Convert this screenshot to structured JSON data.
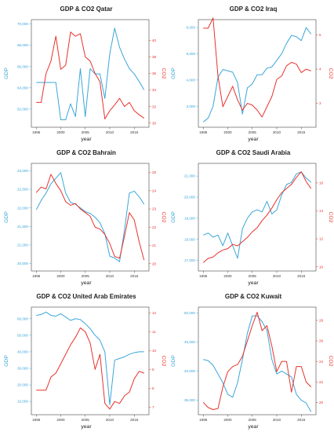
{
  "panels": [
    {
      "title": "GDP & CO2 Qatar",
      "xlabel": "year",
      "ylabel_left": "GDP",
      "ylabel_right": "CO2",
      "xlim": [
        1994,
        2018
      ],
      "ylim_left": [
        60300,
        70400
      ],
      "ylim_right": [
        29.5,
        42.5
      ],
      "xticks": [
        1995,
        2000,
        2005,
        2010,
        2015
      ],
      "yticks_left": [
        62000,
        64000,
        66000,
        68000,
        70000
      ],
      "yticks_left_labels": [
        "62,000",
        "64,000",
        "66,000",
        "68,000",
        "70,000"
      ],
      "yticks_right": [
        30,
        32,
        34,
        36,
        38,
        40
      ],
      "yticks_right_labels": [
        "30",
        "32",
        "34",
        "36",
        "38",
        "40"
      ],
      "series": [
        {
          "axis": "left",
          "color": "#3aa6d9",
          "x": [
            1995,
            1996,
            1997,
            1998,
            1999,
            2000,
            2001,
            2002,
            2003,
            2004,
            2005,
            2006,
            2007,
            2008,
            2009,
            2010,
            2011,
            2012,
            2013,
            2014,
            2015,
            2016,
            2017
          ],
          "y": [
            64500,
            64500,
            64500,
            64500,
            64500,
            61000,
            61000,
            62500,
            61300,
            65800,
            61300,
            65800,
            65300,
            65300,
            63000,
            67200,
            69600,
            67800,
            66700,
            65800,
            65300,
            64600,
            63800
          ]
        },
        {
          "axis": "right",
          "color": "#e8322c",
          "x": [
            1995,
            1996,
            1997,
            1998,
            1999,
            2000,
            2001,
            2002,
            2003,
            2004,
            2005,
            2006,
            2007,
            2008,
            2009,
            2010,
            2011,
            2012,
            2013,
            2014,
            2015,
            2016,
            2017
          ],
          "y": [
            32.5,
            32.5,
            36,
            37.5,
            40.5,
            36.5,
            37,
            41,
            40.5,
            40.8,
            38,
            37.5,
            36,
            35,
            30.5,
            31.5,
            32.2,
            33,
            32,
            32.5,
            31.5,
            31,
            30.6
          ]
        }
      ]
    },
    {
      "title": "GDP & CO2 Iraq",
      "xlabel": "year",
      "ylabel_left": "GDP",
      "ylabel_right": "CO2",
      "xlim": [
        1994,
        2018
      ],
      "ylim_left": [
        2200,
        6300
      ],
      "ylim_right": [
        2.3,
        5.45
      ],
      "xticks": [
        1995,
        2000,
        2005,
        2010,
        2015
      ],
      "yticks_left": [
        3000,
        4000,
        5000,
        6000
      ],
      "yticks_left_labels": [
        "3,000",
        "4,000",
        "5,000",
        "6,000"
      ],
      "yticks_right": [
        3,
        4,
        5
      ],
      "yticks_right_labels": [
        "3",
        "4",
        "5"
      ],
      "series": [
        {
          "axis": "left",
          "color": "#3aa6d9",
          "x": [
            1995,
            1996,
            1997,
            1998,
            1999,
            2000,
            2001,
            2002,
            2003,
            2004,
            2005,
            2006,
            2007,
            2008,
            2009,
            2010,
            2011,
            2012,
            2013,
            2014,
            2015,
            2016,
            2017
          ],
          "y": [
            2400,
            2550,
            3000,
            4100,
            4400,
            4350,
            4300,
            3900,
            2700,
            3700,
            3850,
            4200,
            4200,
            4450,
            4500,
            4750,
            5000,
            5400,
            5700,
            5650,
            5500,
            6000,
            5750
          ]
        },
        {
          "axis": "right",
          "color": "#e8322c",
          "x": [
            1995,
            1996,
            1997,
            1998,
            1999,
            2000,
            2001,
            2002,
            2003,
            2004,
            2005,
            2006,
            2007,
            2008,
            2009,
            2010,
            2011,
            2012,
            2013,
            2014,
            2015,
            2016,
            2017
          ],
          "y": [
            5.2,
            5.2,
            5.5,
            3.8,
            2.9,
            3.2,
            3.5,
            3.1,
            2.8,
            3.0,
            2.95,
            2.8,
            2.6,
            2.9,
            3.2,
            3.7,
            3.8,
            4.1,
            4.2,
            4.15,
            3.9,
            4.0,
            3.95
          ]
        }
      ]
    },
    {
      "title": "GDP & CO2 Bahrain",
      "xlabel": "year",
      "ylabel_left": "GDP",
      "ylabel_right": "CO2",
      "xlim": [
        1994,
        2018
      ],
      "ylim_left": [
        20300,
        23200
      ],
      "ylim_right": [
        19.6,
        25.5
      ],
      "xticks": [
        1995,
        2000,
        2005,
        2010,
        2015
      ],
      "yticks_left": [
        20500,
        21000,
        21500,
        22000,
        22500,
        23000
      ],
      "yticks_left_labels": [
        "20,500",
        "21,000",
        "21,500",
        "22,000",
        "22,500",
        "23,000"
      ],
      "yticks_right": [
        20,
        21,
        22,
        23,
        24,
        25
      ],
      "yticks_right_labels": [
        "20",
        "21",
        "22",
        "23",
        "24",
        "25"
      ],
      "series": [
        {
          "axis": "left",
          "color": "#3aa6d9",
          "x": [
            1995,
            1996,
            1997,
            1998,
            1999,
            2000,
            2001,
            2002,
            2003,
            2004,
            2005,
            2006,
            2007,
            2008,
            2009,
            2010,
            2011,
            2012,
            2013,
            2014,
            2015,
            2016,
            2017
          ],
          "y": [
            21950,
            22200,
            22400,
            22650,
            22800,
            22950,
            22400,
            22150,
            22100,
            22000,
            21900,
            21850,
            21750,
            21600,
            21300,
            20700,
            20650,
            20550,
            21400,
            22400,
            22450,
            22300,
            22100
          ]
        },
        {
          "axis": "right",
          "color": "#e8322c",
          "x": [
            1995,
            1996,
            1997,
            1998,
            1999,
            2000,
            2001,
            2002,
            2003,
            2004,
            2005,
            2006,
            2007,
            2008,
            2009,
            2010,
            2011,
            2012,
            2013,
            2014,
            2015,
            2016,
            2017
          ],
          "y": [
            23.9,
            24.2,
            24.1,
            24.9,
            24.4,
            24.0,
            23.4,
            23.2,
            23.3,
            23.0,
            22.8,
            22.6,
            22.0,
            21.9,
            21.6,
            21.1,
            20.4,
            20.3,
            21.5,
            22.8,
            22.4,
            21.2,
            20.2
          ]
        }
      ]
    },
    {
      "title": "GDP & CO2 Saudi Arabia",
      "xlabel": "year",
      "ylabel_left": "GDP",
      "ylabel_right": "CO2",
      "xlim": [
        1994,
        2018
      ],
      "ylim_left": [
        16500,
        21600
      ],
      "ylim_right": [
        9.7,
        17.4
      ],
      "xticks": [
        1995,
        2000,
        2005,
        2010,
        2015
      ],
      "yticks_left": [
        17000,
        18000,
        19000,
        20000,
        21000
      ],
      "yticks_left_labels": [
        "17,000",
        "18,000",
        "19,000",
        "20,000",
        "21,000"
      ],
      "yticks_right": [
        10,
        12,
        14,
        16
      ],
      "yticks_right_labels": [
        "10",
        "12",
        "14",
        "16"
      ],
      "series": [
        {
          "axis": "left",
          "color": "#3aa6d9",
          "x": [
            1995,
            1996,
            1997,
            1998,
            1999,
            2000,
            2001,
            2002,
            2003,
            2004,
            2005,
            2006,
            2007,
            2008,
            2009,
            2010,
            2011,
            2012,
            2013,
            2014,
            2015,
            2016,
            2017
          ],
          "y": [
            18200,
            18300,
            18100,
            18200,
            17700,
            18300,
            17700,
            17100,
            18500,
            19000,
            19300,
            19400,
            19300,
            19800,
            19200,
            19400,
            20100,
            20600,
            20700,
            21100,
            21200,
            20900,
            20700
          ]
        },
        {
          "axis": "right",
          "color": "#e8322c",
          "x": [
            1995,
            1996,
            1997,
            1998,
            1999,
            2000,
            2001,
            2002,
            2003,
            2004,
            2005,
            2006,
            2007,
            2008,
            2009,
            2010,
            2011,
            2012,
            2013,
            2014,
            2015,
            2016,
            2017
          ],
          "y": [
            10.3,
            10.6,
            10.7,
            11.0,
            11.2,
            11.3,
            11.6,
            11.5,
            11.8,
            12.1,
            12.5,
            12.8,
            13.3,
            13.7,
            14.2,
            14.8,
            15.3,
            15.6,
            15.9,
            16.4,
            16.8,
            16.1,
            15.6
          ]
        }
      ]
    },
    {
      "title": "GDP & CO2 United Arab Emirates",
      "xlabel": "year",
      "ylabel_left": "GDP",
      "ylabel_right": "CO2",
      "xlim": [
        1994,
        2018
      ],
      "ylim_left": [
        2000,
        67000
      ],
      "ylim_right": [
        6.6,
        12.3
      ],
      "xticks": [
        1995,
        2000,
        2005,
        2010,
        2015
      ],
      "yticks_left": [
        10000,
        20000,
        30000,
        40000,
        50000,
        60000
      ],
      "yticks_left_labels": [
        "10,000",
        "20,000",
        "30,000",
        "40,000",
        "50,000",
        "60,000"
      ],
      "yticks_right": [
        7,
        8,
        9,
        10,
        11,
        12
      ],
      "yticks_right_labels": [
        "7",
        "8",
        "9",
        "10",
        "11",
        "12"
      ],
      "series": [
        {
          "axis": "left",
          "color": "#3aa6d9",
          "x": [
            1995,
            1996,
            1997,
            1998,
            1999,
            2000,
            2001,
            2002,
            2003,
            2004,
            2005,
            2006,
            2007,
            2008,
            2009,
            2010,
            2011,
            2012,
            2013,
            2014,
            2015,
            2016,
            2017
          ],
          "y": [
            62000,
            62500,
            64000,
            62000,
            61500,
            63000,
            61000,
            59000,
            60000,
            59500,
            57000,
            54000,
            50000,
            47000,
            40000,
            8000,
            35000,
            36000,
            37000,
            38500,
            39500,
            40000,
            40000
          ]
        },
        {
          "axis": "right",
          "color": "#e8322c",
          "x": [
            1995,
            1996,
            1997,
            1998,
            1999,
            2000,
            2001,
            2002,
            2003,
            2004,
            2005,
            2006,
            2007,
            2008,
            2009,
            2010,
            2011,
            2012,
            2013,
            2014,
            2015,
            2016,
            2017
          ],
          "y": [
            7.9,
            7.9,
            7.9,
            8.6,
            8.8,
            9.3,
            9.8,
            10.3,
            10.7,
            11.2,
            11.0,
            10.4,
            9.0,
            9.8,
            7.2,
            6.9,
            7.3,
            7.2,
            7.6,
            7.8,
            8.5,
            8.9,
            8.8
          ]
        }
      ]
    },
    {
      "title": "GDP & CO2 Kuwait",
      "xlabel": "year",
      "ylabel_left": "GDP",
      "ylabel_right": "CO2",
      "xlim": [
        1994,
        2018
      ],
      "ylim_left": [
        32500,
        51000
      ],
      "ylim_right": [
        18.8,
        29.3
      ],
      "xticks": [
        1995,
        2000,
        2005,
        2010,
        2015
      ],
      "yticks_left": [
        35000,
        40000,
        45000,
        50000
      ],
      "yticks_left_labels": [
        "35,000",
        "40,000",
        "45,000",
        "50,000"
      ],
      "yticks_right": [
        20,
        22,
        24,
        26,
        28
      ],
      "yticks_right_labels": [
        "20",
        "22",
        "24",
        "26",
        "28"
      ],
      "series": [
        {
          "axis": "left",
          "color": "#3aa6d9",
          "x": [
            1995,
            1996,
            1997,
            1998,
            1999,
            2000,
            2001,
            2002,
            2003,
            2004,
            2005,
            2006,
            2007,
            2008,
            2009,
            2010,
            2011,
            2012,
            2013,
            2014,
            2015,
            2016,
            2017
          ],
          "y": [
            42000,
            41800,
            41000,
            39500,
            38000,
            36000,
            35500,
            38000,
            42000,
            46500,
            49500,
            49500,
            48500,
            47000,
            42000,
            39500,
            40000,
            39500,
            39000,
            36000,
            35000,
            34500,
            33000
          ]
        },
        {
          "axis": "right",
          "color": "#e8322c",
          "x": [
            1995,
            1996,
            1997,
            1998,
            1999,
            2000,
            2001,
            2002,
            2003,
            2004,
            2005,
            2006,
            2007,
            2008,
            2009,
            2010,
            2011,
            2012,
            2013,
            2014,
            2015,
            2016,
            2017
          ],
          "y": [
            20.0,
            19.5,
            19.3,
            19.4,
            21.5,
            23.0,
            23.5,
            23.7,
            24.5,
            26.0,
            27.5,
            28.8,
            27.0,
            27.5,
            25.5,
            23.0,
            24.0,
            24.0,
            21.0,
            23.5,
            23.5,
            22.0,
            21.5
          ]
        }
      ]
    }
  ]
}
